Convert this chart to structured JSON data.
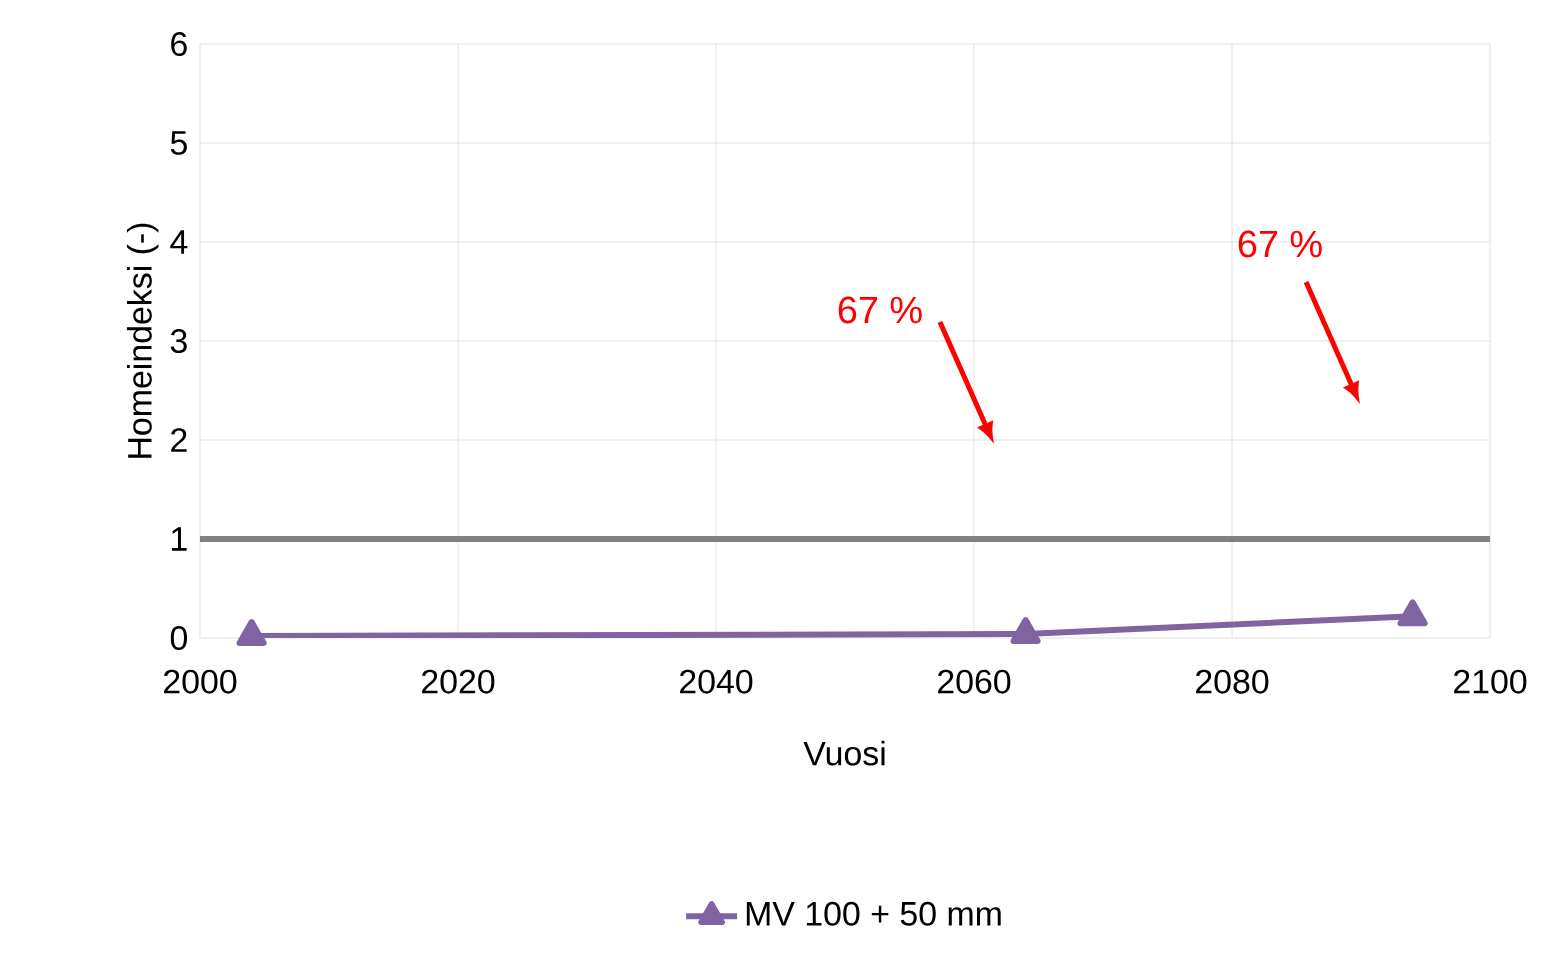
{
  "chart_data": {
    "type": "line",
    "xlabel": "Vuosi",
    "ylabel": "Homeindeksi (-)",
    "series": [
      {
        "name": "MV 100 + 50 mm",
        "color": "#8064a2",
        "x": [
          2004,
          2064,
          2094
        ],
        "values": [
          0.02,
          0.04,
          0.22
        ]
      }
    ],
    "xlim": [
      2000,
      2100
    ],
    "xticks": [
      2000,
      2020,
      2040,
      2060,
      2080,
      2100
    ],
    "ylim": [
      0,
      6
    ],
    "yticks": [
      0,
      1,
      2,
      3,
      4,
      5,
      6
    ],
    "grid": true,
    "legend": "bottom",
    "marker": "triangle",
    "line_style": "solid",
    "ref_lines": [
      {
        "axis": "y",
        "value": 1,
        "color": "#808080"
      }
    ],
    "annotations": [
      "67 %",
      "67 %"
    ]
  }
}
